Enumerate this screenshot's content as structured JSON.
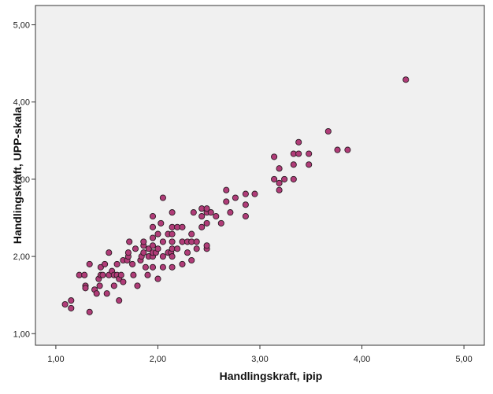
{
  "chart_data": {
    "type": "scatter",
    "title": "",
    "xlabel": "Handlingskraft, ipip",
    "ylabel": "Handlingskraft, UPP-skala",
    "xlim": [
      0.8,
      5.2
    ],
    "ylim": [
      0.85,
      5.25
    ],
    "x_ticks": [
      1,
      2,
      3,
      4,
      5
    ],
    "x_tick_labels": [
      "1,00",
      "2,00",
      "3,00",
      "4,00",
      "5,00"
    ],
    "y_ticks": [
      1,
      2,
      3,
      4,
      5
    ],
    "y_tick_labels": [
      "1,00",
      "2,00",
      "3,00",
      "4,00",
      "5,00"
    ],
    "grid": false,
    "background": "#f0f0f0",
    "marker_fill": "#b03c78",
    "marker_edge": "#2a1a22",
    "points": [
      [
        1.09,
        1.38
      ],
      [
        1.15,
        1.43
      ],
      [
        1.15,
        1.33
      ],
      [
        1.33,
        1.28
      ],
      [
        1.23,
        1.76
      ],
      [
        1.28,
        1.76
      ],
      [
        1.29,
        1.62
      ],
      [
        1.29,
        1.59
      ],
      [
        1.33,
        1.9
      ],
      [
        1.38,
        1.57
      ],
      [
        1.4,
        1.52
      ],
      [
        1.42,
        1.71
      ],
      [
        1.43,
        1.62
      ],
      [
        1.44,
        1.86
      ],
      [
        1.44,
        1.76
      ],
      [
        1.46,
        1.76
      ],
      [
        1.48,
        1.9
      ],
      [
        1.5,
        1.52
      ],
      [
        1.52,
        1.76
      ],
      [
        1.52,
        2.05
      ],
      [
        1.55,
        1.81
      ],
      [
        1.57,
        1.76
      ],
      [
        1.57,
        1.62
      ],
      [
        1.6,
        1.76
      ],
      [
        1.6,
        1.9
      ],
      [
        1.62,
        1.71
      ],
      [
        1.62,
        1.43
      ],
      [
        1.64,
        1.76
      ],
      [
        1.66,
        1.95
      ],
      [
        1.66,
        1.67
      ],
      [
        1.7,
        1.95
      ],
      [
        1.71,
        2.0
      ],
      [
        1.71,
        2.05
      ],
      [
        1.72,
        2.19
      ],
      [
        1.75,
        1.9
      ],
      [
        1.76,
        1.76
      ],
      [
        1.78,
        2.1
      ],
      [
        1.8,
        1.62
      ],
      [
        1.83,
        1.95
      ],
      [
        1.84,
        2.0
      ],
      [
        1.86,
        2.05
      ],
      [
        1.86,
        2.14
      ],
      [
        1.86,
        2.19
      ],
      [
        1.88,
        1.86
      ],
      [
        1.9,
        1.76
      ],
      [
        1.91,
        2.0
      ],
      [
        1.91,
        2.1
      ],
      [
        1.95,
        2.0
      ],
      [
        1.95,
        2.05
      ],
      [
        1.95,
        2.14
      ],
      [
        1.95,
        2.24
      ],
      [
        1.95,
        2.38
      ],
      [
        1.95,
        2.52
      ],
      [
        1.95,
        1.86
      ],
      [
        1.98,
        2.05
      ],
      [
        2.0,
        1.71
      ],
      [
        2.0,
        2.1
      ],
      [
        2.0,
        2.29
      ],
      [
        2.03,
        2.43
      ],
      [
        2.05,
        2.76
      ],
      [
        2.05,
        1.86
      ],
      [
        2.05,
        2.0
      ],
      [
        2.05,
        2.19
      ],
      [
        2.1,
        2.05
      ],
      [
        2.1,
        2.29
      ],
      [
        2.13,
        2.05
      ],
      [
        2.14,
        2.38
      ],
      [
        2.14,
        2.57
      ],
      [
        2.14,
        1.86
      ],
      [
        2.14,
        2.0
      ],
      [
        2.14,
        2.1
      ],
      [
        2.14,
        2.19
      ],
      [
        2.14,
        2.29
      ],
      [
        2.19,
        2.38
      ],
      [
        2.19,
        2.1
      ],
      [
        2.24,
        2.19
      ],
      [
        2.24,
        2.38
      ],
      [
        2.24,
        1.9
      ],
      [
        2.29,
        2.19
      ],
      [
        2.29,
        2.05
      ],
      [
        2.33,
        2.19
      ],
      [
        2.33,
        2.29
      ],
      [
        2.33,
        1.95
      ],
      [
        2.35,
        2.57
      ],
      [
        2.38,
        2.19
      ],
      [
        2.38,
        2.1
      ],
      [
        2.43,
        2.38
      ],
      [
        2.43,
        2.52
      ],
      [
        2.43,
        2.62
      ],
      [
        2.48,
        2.57
      ],
      [
        2.48,
        2.43
      ],
      [
        2.48,
        2.62
      ],
      [
        2.48,
        2.1
      ],
      [
        2.48,
        2.14
      ],
      [
        2.52,
        2.57
      ],
      [
        2.57,
        2.52
      ],
      [
        2.62,
        2.43
      ],
      [
        2.67,
        2.86
      ],
      [
        2.67,
        2.71
      ],
      [
        2.71,
        2.57
      ],
      [
        2.76,
        2.76
      ],
      [
        2.86,
        2.81
      ],
      [
        2.86,
        2.67
      ],
      [
        2.86,
        2.52
      ],
      [
        2.95,
        2.81
      ],
      [
        3.14,
        3.29
      ],
      [
        3.14,
        3.0
      ],
      [
        3.19,
        2.95
      ],
      [
        3.19,
        3.14
      ],
      [
        3.19,
        2.86
      ],
      [
        3.24,
        3.0
      ],
      [
        3.33,
        3.33
      ],
      [
        3.33,
        3.19
      ],
      [
        3.33,
        3.0
      ],
      [
        3.38,
        3.33
      ],
      [
        3.38,
        3.48
      ],
      [
        3.48,
        3.33
      ],
      [
        3.48,
        3.19
      ],
      [
        3.67,
        3.62
      ],
      [
        3.76,
        3.38
      ],
      [
        3.86,
        3.38
      ],
      [
        4.43,
        4.29
      ]
    ]
  }
}
